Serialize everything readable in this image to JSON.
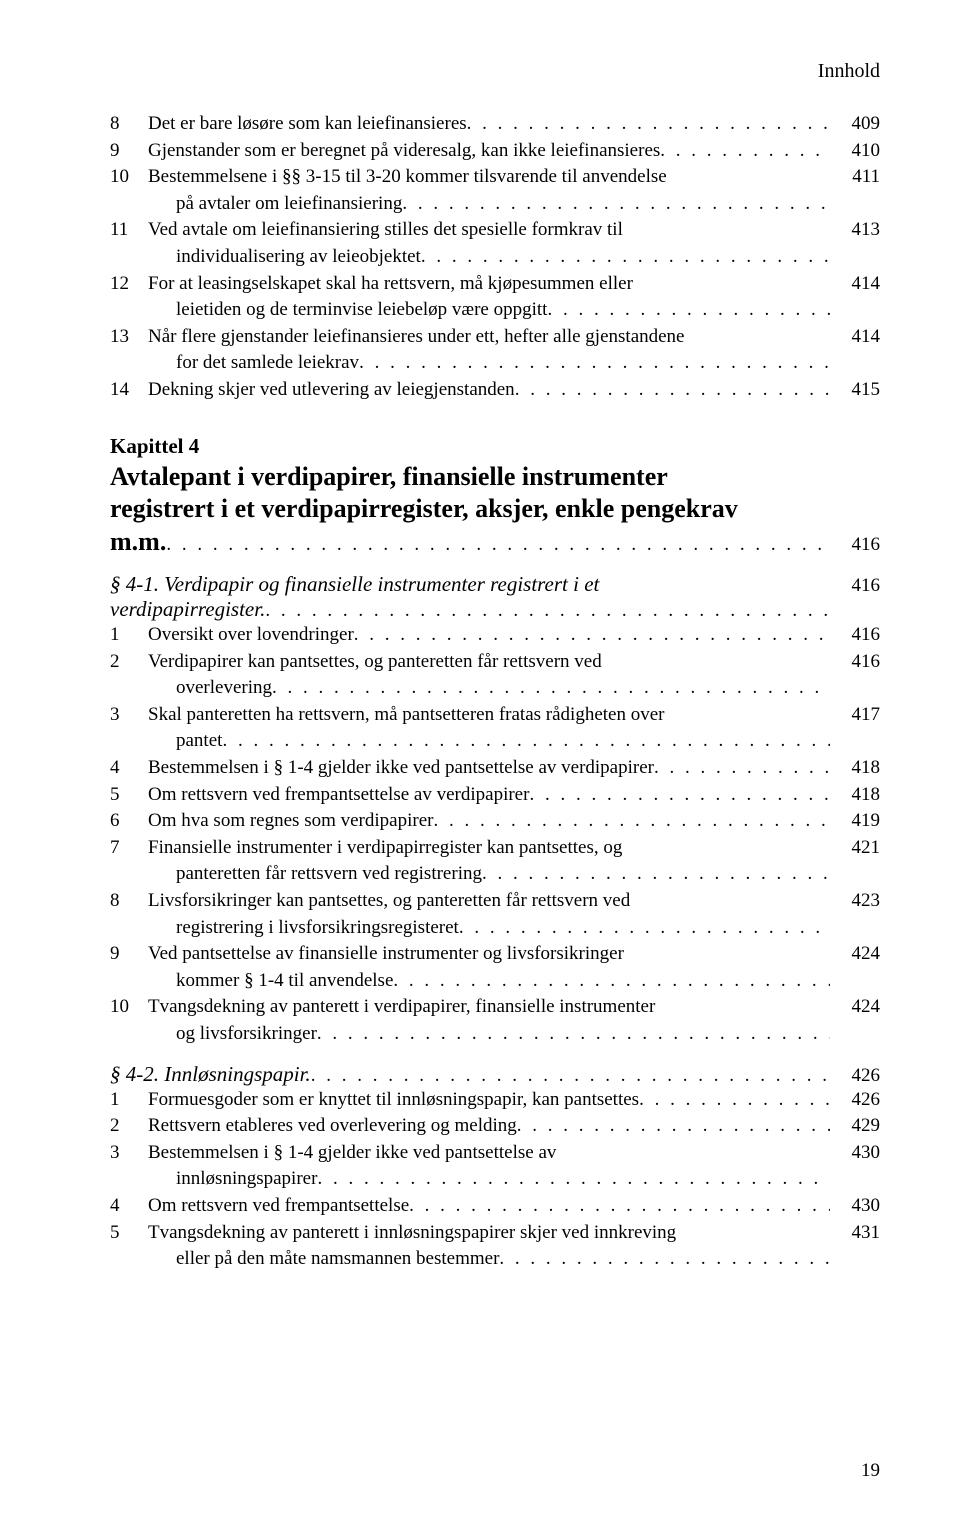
{
  "running_head": "Innhold",
  "dot_fill": ". . . . . . . . . . . . . . . . . . . . . . . . . . . . . . . . . . . . . . . . . . . . . . . . . . . . . . . . . . . . . . . . . . . . . . . . . . . . . . . . . . . . . . . . . . . . . . . . . . . .",
  "page_number": "19",
  "block1": [
    {
      "n": "8",
      "text_pre": "",
      "text_last": "Det er bare løsøre som kan leiefinansieres",
      "pg": "409",
      "indent": false
    },
    {
      "n": "9",
      "text_pre": "",
      "text_last": "Gjenstander som er beregnet på videresalg, kan ikke leiefinansieres",
      "pg": "410",
      "indent": false
    },
    {
      "n": "10",
      "text_pre": "Bestemmelsene i §§ 3-15 til 3-20 kommer tilsvarende til anvendelse",
      "text_last": "på avtaler om leiefinansiering",
      "pg": "411",
      "indent": true
    },
    {
      "n": "11",
      "text_pre": "Ved avtale om leiefinansiering stilles det spesielle formkrav til",
      "text_last": "individualisering av leieobjektet",
      "pg": "413",
      "indent": true
    },
    {
      "n": "12",
      "text_pre": "For at leasingselskapet skal ha rettsvern, må kjøpesummen eller",
      "text_last": "leietiden og de terminvise leiebeløp være oppgitt",
      "pg": "414",
      "indent": true
    },
    {
      "n": "13",
      "text_pre": "Når flere gjenstander leiefinansieres under ett, hefter alle gjenstandene",
      "text_last": "for det samlede leiekrav",
      "pg": "414",
      "indent": true
    },
    {
      "n": "14",
      "text_pre": "",
      "text_last": "Dekning skjer ved utlevering av leiegjenstanden",
      "pg": "415",
      "indent": false
    }
  ],
  "chapter": {
    "label": "Kapittel 4",
    "title_lines": [
      "Avtalepant i verdipapirer, finansielle instrumenter",
      "registrert i et verdipapirregister, aksjer, enkle pengekrav"
    ],
    "title_last": "m.m.",
    "pg": "416"
  },
  "section41": {
    "title_pre": "§ 4-1. Verdipapir og finansielle instrumenter registrert i et",
    "title_last": "verdipapirregister.",
    "pg": "416",
    "items": [
      {
        "n": "1",
        "text_pre": "",
        "text_last": "Oversikt over lovendringer",
        "pg": "416",
        "indent": false
      },
      {
        "n": "2",
        "text_pre": "Verdipapirer kan pantsettes, og panteretten får rettsvern ved",
        "text_last": "overlevering",
        "pg": "416",
        "indent": true
      },
      {
        "n": "3",
        "text_pre": "Skal panteretten ha rettsvern, må pantsetteren fratas rådigheten over",
        "text_last": "pantet",
        "pg": "417",
        "indent": true
      },
      {
        "n": "4",
        "text_pre": "",
        "text_last": "Bestemmelsen i § 1-4 gjelder ikke ved pantsettelse av verdipapirer",
        "pg": "418",
        "indent": false
      },
      {
        "n": "5",
        "text_pre": "",
        "text_last": "Om rettsvern ved frempantsettelse av verdipapirer",
        "pg": "418",
        "indent": false
      },
      {
        "n": "6",
        "text_pre": "",
        "text_last": "Om hva som regnes som verdipapirer",
        "pg": "419",
        "indent": false
      },
      {
        "n": "7",
        "text_pre": "Finansielle instrumenter i verdipapirregister kan pantsettes, og",
        "text_last": "panteretten får rettsvern ved registrering",
        "pg": "421",
        "indent": true
      },
      {
        "n": "8",
        "text_pre": "Livsforsikringer kan pantsettes, og panteretten får rettsvern ved",
        "text_last": "registrering i livsforsikringsregisteret",
        "pg": "423",
        "indent": true
      },
      {
        "n": "9",
        "text_pre": "Ved pantsettelse av finansielle instrumenter og livsforsikringer",
        "text_last": "kommer § 1-4 til anvendelse",
        "pg": "424",
        "indent": true
      },
      {
        "n": "10",
        "text_pre": "Tvangsdekning av panterett i verdipapirer, finansielle instrumenter",
        "text_last": "og livsforsikringer",
        "pg": "424",
        "indent": true
      }
    ]
  },
  "section42": {
    "title_last": "§ 4-2. Innløsningspapir.",
    "pg": "426",
    "items": [
      {
        "n": "1",
        "text_pre": "",
        "text_last": "Formuesgoder som er knyttet til innløsningspapir, kan pantsettes",
        "pg": "426",
        "indent": false
      },
      {
        "n": "2",
        "text_pre": "",
        "text_last": "Rettsvern etableres ved overlevering og melding",
        "pg": "429",
        "indent": false
      },
      {
        "n": "3",
        "text_pre": "Bestemmelsen i § 1-4 gjelder ikke ved pantsettelse av",
        "text_last": "innløsningspapirer",
        "pg": "430",
        "indent": true
      },
      {
        "n": "4",
        "text_pre": "",
        "text_last": "Om rettsvern ved frempantsettelse",
        "pg": "430",
        "indent": false
      },
      {
        "n": "5",
        "text_pre": "Tvangsdekning av panterett i innløsningspapirer skjer ved innkreving",
        "text_last": "eller på den måte namsmannen bestemmer",
        "pg": "431",
        "indent": true
      }
    ]
  }
}
